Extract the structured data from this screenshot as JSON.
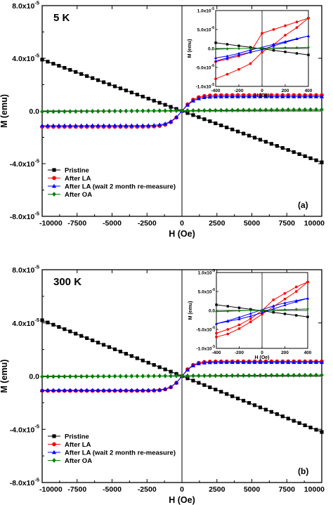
{
  "chart_data": [
    {
      "type": "scatter",
      "panel_label": "(a)",
      "temperature": "5 K",
      "xlabel": "H (Oe)",
      "ylabel": "M (emu)",
      "xlim": [
        -10000,
        10000
      ],
      "ylim": [
        -8e-05,
        8e-05
      ],
      "xticks": [
        -10000,
        -7500,
        -5000,
        -2500,
        0,
        2500,
        5000,
        7500,
        10000
      ],
      "xtick_labels": [
        "-10000",
        "-7500",
        "-5000",
        "-2500",
        "0",
        "2500",
        "5000",
        "7500",
        "10000"
      ],
      "yticks": [
        8e-05,
        4e-05,
        0,
        -4e-05,
        -8e-05
      ],
      "ytick_labels": [
        [
          "8.0x10",
          "-5"
        ],
        [
          "4.0x10",
          "-5"
        ],
        [
          "0.0",
          ""
        ],
        [
          "-4.0x10",
          "-5"
        ],
        [
          "-8.0x10",
          "-5"
        ]
      ],
      "legend_position": "bottom-left",
      "series": [
        {
          "name": "Pristine",
          "color": "#000000",
          "marker": "square",
          "model": {
            "kind": "linear",
            "slope": -3.9e-09
          }
        },
        {
          "name": "After LA",
          "color": "#ff0000",
          "marker": "circle",
          "model": {
            "kind": "tanh",
            "offset": 0,
            "ms": 1.2e-05,
            "h0": 900
          }
        },
        {
          "name": "After LA (wait 2 month re-measure)",
          "color": "#0000ff",
          "marker": "triangle",
          "model": {
            "kind": "tanh",
            "offset": -1e-07,
            "ms": 1.1e-05,
            "h0": 900
          }
        },
        {
          "name": "After OA",
          "color": "#008000",
          "marker": "diamond",
          "model": {
            "kind": "linear",
            "slope": 8e-11,
            "offset": 3e-07
          }
        }
      ],
      "inset": {
        "xlabel": "H (Oe)",
        "ylabel": "M (emu)",
        "xlim": [
          -400,
          400
        ],
        "ylim": [
          -1e-05,
          1e-05
        ],
        "xticks": [
          -400,
          -200,
          0,
          200,
          400
        ],
        "xtick_labels": [
          "-400",
          "-200",
          "0",
          "200",
          "400"
        ],
        "yticks": [
          1e-05,
          5e-06,
          0,
          -5e-06,
          -1e-05
        ],
        "ytick_labels": [
          [
            "1.0x10",
            "-5"
          ],
          [
            "5.0x10",
            "-6"
          ],
          [
            "0.0",
            ""
          ],
          [
            "-5.0x10",
            "-6"
          ],
          [
            "-1.0x10",
            "-5"
          ]
        ],
        "curves": [
          {
            "color": "#000000",
            "marker": "square",
            "points": [
              [
                -400,
                1.5e-06
              ],
              [
                -300,
                1.1e-06
              ],
              [
                -200,
                7e-07
              ],
              [
                -100,
                3e-07
              ],
              [
                0,
                -1e-07
              ],
              [
                100,
                -5e-07
              ],
              [
                200,
                -9e-07
              ],
              [
                300,
                -1.3e-06
              ],
              [
                400,
                -1.7e-06
              ]
            ]
          },
          {
            "color": "#ff0000",
            "marker": "circle",
            "points": [
              [
                -400,
                -3.5e-06
              ],
              [
                -300,
                -2.8e-06
              ],
              [
                -200,
                -2e-06
              ],
              [
                -100,
                -1e-06
              ],
              [
                0,
                4e-06
              ],
              [
                100,
                5e-06
              ],
              [
                200,
                6e-06
              ],
              [
                300,
                7e-06
              ],
              [
                400,
                8e-06
              ]
            ]
          },
          {
            "color": "#ff0000",
            "marker": "circle",
            "points": [
              [
                400,
                8e-06
              ],
              [
                300,
                5.5e-06
              ],
              [
                200,
                3.5e-06
              ],
              [
                100,
                1e-06
              ],
              [
                0,
                -1e-06
              ],
              [
                -100,
                -4e-06
              ],
              [
                -200,
                -5.5e-06
              ],
              [
                -300,
                -6.8e-06
              ],
              [
                -400,
                -8e-06
              ]
            ]
          },
          {
            "color": "#0000ff",
            "marker": "triangle",
            "points": [
              [
                -400,
                -2.5e-06
              ],
              [
                -300,
                -2e-06
              ],
              [
                -200,
                -1.3e-06
              ],
              [
                -100,
                -4e-07
              ],
              [
                0,
                3e-07
              ],
              [
                100,
                1.1e-06
              ],
              [
                200,
                1.8e-06
              ],
              [
                300,
                2.6e-06
              ],
              [
                400,
                3.3e-06
              ]
            ]
          },
          {
            "color": "#0000ff",
            "marker": "triangle",
            "points": [
              [
                400,
                3.3e-06
              ],
              [
                300,
                2.5e-06
              ],
              [
                200,
                1.6e-06
              ],
              [
                100,
                7e-07
              ],
              [
                0,
                -3e-07
              ],
              [
                -100,
                -1e-06
              ],
              [
                -200,
                -1.7e-06
              ],
              [
                -300,
                -2.5e-06
              ],
              [
                -400,
                -3.3e-06
              ]
            ]
          },
          {
            "color": "#008000",
            "marker": "diamond",
            "points": [
              [
                -400,
                -2e-07
              ],
              [
                -300,
                -1e-07
              ],
              [
                -200,
                0
              ],
              [
                -100,
                0
              ],
              [
                0,
                1e-07
              ],
              [
                100,
                1e-07
              ],
              [
                200,
                2e-07
              ],
              [
                300,
                2e-07
              ],
              [
                400,
                3e-07
              ]
            ]
          }
        ]
      }
    },
    {
      "type": "scatter",
      "panel_label": "(b)",
      "temperature": "300 K",
      "xlabel": "H (Oe)",
      "ylabel": "M (emu)",
      "xlim": [
        -10000,
        10000
      ],
      "ylim": [
        -8e-05,
        8e-05
      ],
      "xticks": [
        -10000,
        -7500,
        -5000,
        -2500,
        0,
        2500,
        5000,
        7500,
        10000
      ],
      "xtick_labels": [
        "-10000",
        "-7500",
        "-5000",
        "-2500",
        "0",
        "2500",
        "5000",
        "7500",
        "10000"
      ],
      "yticks": [
        8e-05,
        4e-05,
        0,
        -4e-05,
        -8e-05
      ],
      "ytick_labels": [
        [
          "8.0x10",
          "-5"
        ],
        [
          "4.0x10",
          "-5"
        ],
        [
          "0.0",
          ""
        ],
        [
          "-4.0x10",
          "-5"
        ],
        [
          "-8.0x10",
          "-5"
        ]
      ],
      "legend_position": "bottom-left",
      "series": [
        {
          "name": "Pristine",
          "color": "#000000",
          "marker": "square",
          "model": {
            "kind": "linear",
            "slope": -4.2e-09
          }
        },
        {
          "name": "After LA",
          "color": "#ff0000",
          "marker": "circle",
          "model": {
            "kind": "tanh",
            "offset": 0,
            "ms": 1.1e-05,
            "h0": 800
          }
        },
        {
          "name": "After LA (wait 2 month re-measure)",
          "color": "#0000ff",
          "marker": "triangle",
          "model": {
            "kind": "tanh",
            "offset": -1e-07,
            "ms": 1.05e-05,
            "h0": 800
          }
        },
        {
          "name": "After OA",
          "color": "#008000",
          "marker": "diamond",
          "model": {
            "kind": "linear",
            "slope": 6e-11,
            "offset": 2e-07
          }
        }
      ],
      "inset": {
        "xlabel": "H (Oe)",
        "ylabel": "M (emu)",
        "xlim": [
          -400,
          400
        ],
        "ylim": [
          -1e-05,
          1e-05
        ],
        "xticks": [
          -400,
          -200,
          0,
          200,
          400
        ],
        "xtick_labels": [
          "-400",
          "-200",
          "0",
          "200",
          "400"
        ],
        "yticks": [
          1e-05,
          5e-06,
          0,
          -5e-06,
          -1e-05
        ],
        "ytick_labels": [
          [
            "1.0x10",
            "-5"
          ],
          [
            "5.0x10",
            "-6"
          ],
          [
            "0.0",
            ""
          ],
          [
            "-5.0x10",
            "-6"
          ],
          [
            "-1.0x10",
            "-5"
          ]
        ],
        "curves": [
          {
            "color": "#000000",
            "marker": "square",
            "points": [
              [
                -400,
                1.5e-06
              ],
              [
                -300,
                1.1e-06
              ],
              [
                -200,
                7e-07
              ],
              [
                -100,
                3e-07
              ],
              [
                0,
                -1e-07
              ],
              [
                100,
                -5e-07
              ],
              [
                200,
                -9e-07
              ],
              [
                300,
                -1.3e-06
              ],
              [
                400,
                -1.7e-06
              ]
            ]
          },
          {
            "color": "#ff0000",
            "marker": "circle",
            "points": [
              [
                -400,
                -6e-06
              ],
              [
                -300,
                -5e-06
              ],
              [
                -200,
                -3.8e-06
              ],
              [
                -100,
                -2.2e-06
              ],
              [
                0,
                0
              ],
              [
                100,
                2.8e-06
              ],
              [
                200,
                4.5e-06
              ],
              [
                300,
                6.2e-06
              ],
              [
                400,
                7.5e-06
              ]
            ]
          },
          {
            "color": "#ff0000",
            "marker": "circle",
            "points": [
              [
                400,
                7.5e-06
              ],
              [
                300,
                5e-06
              ],
              [
                200,
                3e-06
              ],
              [
                100,
                1e-06
              ],
              [
                0,
                -1e-06
              ],
              [
                -100,
                -3e-06
              ],
              [
                -200,
                -4.8e-06
              ],
              [
                -300,
                -6.2e-06
              ],
              [
                -400,
                -7e-06
              ]
            ]
          },
          {
            "color": "#0000ff",
            "marker": "triangle",
            "points": [
              [
                -400,
                -3.5e-06
              ],
              [
                -300,
                -2.7e-06
              ],
              [
                -200,
                -1.8e-06
              ],
              [
                -100,
                -8e-07
              ],
              [
                0,
                2e-07
              ],
              [
                100,
                1.2e-06
              ],
              [
                200,
                2e-06
              ],
              [
                300,
                2.6e-06
              ],
              [
                400,
                3.2e-06
              ]
            ]
          },
          {
            "color": "#0000ff",
            "marker": "triangle",
            "points": [
              [
                400,
                3.2e-06
              ],
              [
                300,
                2.3e-06
              ],
              [
                200,
                1.4e-06
              ],
              [
                100,
                4e-07
              ],
              [
                0,
                -6e-07
              ],
              [
                -100,
                -1.5e-06
              ],
              [
                -200,
                -2.3e-06
              ],
              [
                -300,
                -2.9e-06
              ],
              [
                -400,
                -3.5e-06
              ]
            ]
          },
          {
            "color": "#008000",
            "marker": "diamond",
            "points": [
              [
                -400,
                -3e-07
              ],
              [
                -300,
                -2e-07
              ],
              [
                -200,
                -1e-07
              ],
              [
                -100,
                0
              ],
              [
                0,
                1e-07
              ],
              [
                100,
                1e-07
              ],
              [
                200,
                2e-07
              ],
              [
                300,
                3e-07
              ],
              [
                400,
                4e-07
              ]
            ]
          }
        ]
      }
    }
  ]
}
